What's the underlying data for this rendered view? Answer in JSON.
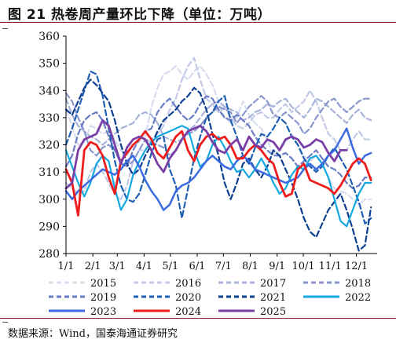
{
  "figure": {
    "title": "图 21 热卷周产量环比下降（单位：万吨）",
    "source": "数据来源：Wind，国泰海通证券研究"
  },
  "chart_data": {
    "type": "line",
    "ylim": [
      280,
      360
    ],
    "y_ticks": [
      280,
      290,
      300,
      310,
      320,
      330,
      340,
      350,
      360
    ],
    "x_tick_labels": [
      "1/1",
      "2/1",
      "3/1",
      "4/1",
      "5/1",
      "6/1",
      "7/1",
      "8/1",
      "9/1",
      "10/1",
      "11/1",
      "12/1"
    ],
    "x_tick_weeks": [
      0,
      4.4,
      8.4,
      12.8,
      17.1,
      21.5,
      25.8,
      30.2,
      34.6,
      38.9,
      43.3,
      47.6
    ],
    "grid": false,
    "legend_position": "bottom",
    "series": [
      {
        "name": "2015",
        "color": "#d7dcef",
        "dash": "dash",
        "width": 2.2,
        "values": [
          333,
          327,
          320,
          321,
          327,
          326,
          324,
          325,
          322,
          318,
          316,
          320,
          321,
          323,
          334,
          341,
          346,
          347,
          349,
          346,
          344,
          347,
          349,
          346,
          342,
          336,
          330,
          328,
          330,
          336,
          331,
          328,
          326,
          322,
          316,
          318,
          321,
          324,
          320,
          316,
          314,
          316,
          313,
          308,
          304,
          303,
          302,
          300,
          298,
          300,
          300
        ]
      },
      {
        "name": "2016",
        "color": "#c3cae6",
        "dash": "dash",
        "width": 2.2,
        "values": [
          306,
          304,
          302,
          303,
          310,
          313,
          310,
          306,
          302,
          300,
          305,
          314,
          318,
          318,
          322,
          324,
          327,
          333,
          337,
          344,
          349,
          352,
          344,
          337,
          335,
          332,
          334,
          330,
          327,
          326,
          328,
          331,
          332,
          330,
          330,
          333,
          335,
          332,
          334,
          336,
          340,
          336,
          330,
          324,
          322,
          318,
          318,
          322,
          325,
          322,
          322
        ]
      },
      {
        "name": "2017",
        "color": "#a8b3da",
        "dash": "dash",
        "width": 2.2,
        "values": [
          337,
          331,
          327,
          325,
          323,
          322,
          320,
          322,
          324,
          326,
          327,
          328,
          331,
          332,
          331,
          328,
          323,
          322,
          321,
          322,
          325,
          327,
          330,
          333,
          335,
          336,
          334,
          333,
          332,
          329,
          330,
          332,
          333,
          335,
          334,
          336,
          337,
          334,
          332,
          330,
          333,
          337,
          336,
          334,
          332,
          330,
          328,
          331,
          333,
          330,
          329
        ]
      },
      {
        "name": "2018",
        "color": "#8a97cc",
        "dash": "dash",
        "width": 2.2,
        "values": [
          339,
          336,
          330,
          325,
          318,
          316,
          319,
          320,
          318,
          314,
          312,
          314,
          318,
          322,
          321,
          320,
          319,
          316,
          318,
          322,
          324,
          325,
          327,
          330,
          332,
          334,
          333,
          332,
          328,
          331,
          334,
          336,
          338,
          336,
          331,
          330,
          332,
          330,
          328,
          324,
          326,
          330,
          333,
          336,
          337,
          334,
          332,
          334,
          336,
          337,
          337
        ]
      },
      {
        "name": "2019",
        "color": "#6a7dc4",
        "dash": "dash",
        "width": 2.2,
        "values": [
          312,
          316,
          324,
          329,
          331,
          332,
          329,
          323,
          318,
          313,
          312,
          318,
          322,
          325,
          326,
          332,
          335,
          337,
          334,
          331,
          329,
          331,
          335,
          338,
          337,
          333,
          330,
          329,
          331,
          329,
          327,
          323,
          320,
          318,
          316,
          316,
          317,
          315,
          312,
          314,
          316,
          318,
          315,
          312,
          311,
          309,
          306,
          304,
          305,
          308,
          308
        ]
      },
      {
        "name": "2020",
        "color": "#1f5fb3",
        "dash": "dash",
        "width": 2.2,
        "values": [
          320,
          326,
          333,
          340,
          347,
          346,
          338,
          326,
          314,
          305,
          300,
          299,
          302,
          309,
          317,
          322,
          323,
          311,
          305,
          293,
          304,
          315,
          323,
          330,
          332,
          336,
          338,
          329,
          323,
          316,
          313,
          319,
          324,
          323,
          326,
          330,
          328,
          323,
          320,
          315,
          312,
          310,
          312,
          316,
          319,
          315,
          311,
          305,
          299,
          291,
          293
        ]
      },
      {
        "name": "2021",
        "color": "#0b3f8f",
        "dash": "dash",
        "width": 2.2,
        "values": [
          333,
          331,
          336,
          341,
          344,
          342,
          339,
          336,
          329,
          320,
          313,
          309,
          311,
          316,
          320,
          325,
          329,
          331,
          333,
          336,
          338,
          341,
          339,
          333,
          324,
          316,
          306,
          300,
          306,
          313,
          315,
          311,
          308,
          312,
          318,
          316,
          311,
          306,
          300,
          293,
          288,
          286,
          291,
          296,
          299,
          302,
          296,
          289,
          281,
          283,
          297
        ]
      },
      {
        "name": "2022",
        "color": "#14a8e0",
        "dash": "solid",
        "width": 2.2,
        "values": [
          318,
          312,
          306,
          301,
          306,
          313,
          316,
          314,
          304,
          296,
          300,
          309,
          314,
          318,
          321,
          323,
          324,
          325,
          326,
          327,
          326,
          318,
          312,
          314,
          320,
          323,
          319,
          314,
          310,
          311,
          308,
          311,
          315,
          311,
          306,
          302,
          304,
          309,
          312,
          311,
          315,
          316,
          313,
          308,
          300,
          292,
          290,
          296,
          302,
          306,
          306
        ]
      },
      {
        "name": "2023",
        "color": "#3c6ae0",
        "dash": "solid",
        "width": 2.5,
        "values": [
          303,
          300,
          303,
          305,
          307,
          309,
          311,
          310,
          309,
          311,
          314,
          316,
          312,
          307,
          303,
          300,
          296,
          298,
          303,
          305,
          306,
          308,
          311,
          314,
          316,
          314,
          312,
          311,
          314,
          316,
          314,
          311,
          310,
          309,
          308,
          307,
          306,
          307,
          308,
          311,
          313,
          311,
          313,
          316,
          318,
          322,
          326,
          319,
          313,
          316,
          317
        ]
      },
      {
        "name": "2024",
        "color": "#ee1c1c",
        "dash": "solid",
        "width": 2.8,
        "values": [
          311,
          306,
          294,
          318,
          321,
          320,
          316,
          308,
          302,
          314,
          317,
          320,
          322,
          325,
          322,
          317,
          315,
          319,
          323,
          325,
          318,
          314,
          320,
          323,
          324,
          322,
          323,
          320,
          315,
          315,
          318,
          320,
          318,
          315,
          313,
          306,
          301,
          302,
          311,
          313,
          307,
          306,
          305,
          304,
          302,
          305,
          309,
          313,
          315,
          313,
          307
        ]
      },
      {
        "name": "2025",
        "color": "#7a3fa6",
        "dash": "solid",
        "width": 2.8,
        "values": [
          304,
          306,
          318,
          322,
          323,
          324,
          329,
          327,
          320,
          313,
          319,
          322,
          323,
          322,
          318,
          313,
          310,
          315,
          318,
          322,
          325,
          326,
          327,
          325,
          321,
          318,
          317,
          320,
          322,
          318,
          323,
          320,
          319,
          322,
          321,
          318,
          322,
          323,
          322,
          319,
          320,
          322,
          321,
          317,
          314,
          318,
          318
        ]
      }
    ]
  }
}
